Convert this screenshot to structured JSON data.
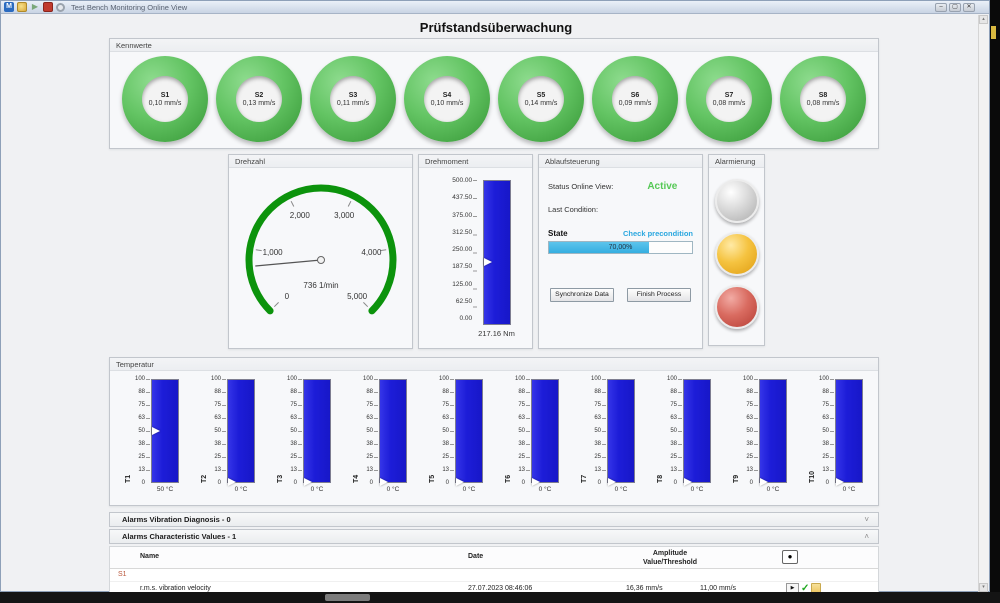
{
  "window": {
    "title": "Test Bench Monitoring Online View",
    "logo_letter": "M",
    "controls": {
      "minimize": "–",
      "maximize": "▢",
      "close": "✕"
    },
    "toolbar_icons": [
      "app-logo",
      "edit-tool",
      "run-arrow",
      "stop-square",
      "settings"
    ]
  },
  "page": {
    "title": "Prüfstandsüberwachung"
  },
  "kennwerte": {
    "label": "Kennwerte",
    "ring_color": "#5fbf5f",
    "sensors": [
      {
        "id": "S1",
        "value": "0,10 mm/s"
      },
      {
        "id": "S2",
        "value": "0,13 mm/s"
      },
      {
        "id": "S3",
        "value": "0,11 mm/s"
      },
      {
        "id": "S4",
        "value": "0,10 mm/s"
      },
      {
        "id": "S5",
        "value": "0,14 mm/s"
      },
      {
        "id": "S6",
        "value": "0,09 mm/s"
      },
      {
        "id": "S7",
        "value": "0,08 mm/s"
      },
      {
        "id": "S8",
        "value": "0,08 mm/s"
      }
    ]
  },
  "drehzahl": {
    "label": "Drehzahl",
    "value": 736,
    "unit": "1/min",
    "value_label": "736 1/min",
    "min": 0,
    "max": 5000,
    "ticks": [
      "0",
      "1,000",
      "2,000",
      "3,000",
      "4,000",
      "5,000"
    ],
    "arc_color": "#0c930c"
  },
  "drehmoment": {
    "label": "Drehmoment",
    "value": 217.16,
    "value_label": "217.16 Nm",
    "percent": 43.4,
    "bar_color": "#2020dd",
    "ticks": [
      "500.00",
      "437.50",
      "375.00",
      "312.50",
      "250.00",
      "187.50",
      "125.00",
      "62.50",
      "0.00"
    ]
  },
  "ablaufsteuerung": {
    "label": "Ablaufsteuerung",
    "status_label": "Status Online View:",
    "status_value": "Active",
    "status_color": "#55c855",
    "last_condition_label": "Last Condition:",
    "state_label": "State",
    "precondition_label": "Check precondition",
    "precondition_color": "#2aa7df",
    "progress_label": "70,00%",
    "progress_percent": 70,
    "sync_button": "Synchronize Data",
    "finish_button": "Finish Process"
  },
  "alarmierung": {
    "label": "Alarmierung",
    "lights": [
      {
        "name": "gray-light",
        "state": "off",
        "color": "#c9c9c9"
      },
      {
        "name": "yellow-light",
        "state": "on",
        "color": "#f2b32a"
      },
      {
        "name": "red-light",
        "state": "on",
        "color": "#c85a54"
      }
    ]
  },
  "temperatur": {
    "label": "Temperatur",
    "scale": [
      "100",
      "88",
      "75",
      "63",
      "50",
      "38",
      "25",
      "13",
      "0"
    ],
    "gauges": [
      {
        "id": "T1",
        "percent": 50,
        "value_label": "50 °C"
      },
      {
        "id": "T2",
        "percent": 0,
        "value_label": "0 °C"
      },
      {
        "id": "T3",
        "percent": 0,
        "value_label": "0 °C"
      },
      {
        "id": "T4",
        "percent": 0,
        "value_label": "0 °C"
      },
      {
        "id": "T5",
        "percent": 0,
        "value_label": "0 °C"
      },
      {
        "id": "T6",
        "percent": 0,
        "value_label": "0 °C"
      },
      {
        "id": "T7",
        "percent": 0,
        "value_label": "0 °C"
      },
      {
        "id": "T8",
        "percent": 0,
        "value_label": "0 °C"
      },
      {
        "id": "T9",
        "percent": 0,
        "value_label": "0 °C"
      },
      {
        "id": "T10",
        "percent": 0,
        "value_label": "0 °C"
      }
    ]
  },
  "alarm_sections": {
    "vibration": {
      "title": "Alarms Vibration Diagnosis - 0",
      "chevron": "˅"
    },
    "characteristic": {
      "title": "Alarms Characteristic Values - 1",
      "chevron": "˄"
    }
  },
  "alarm_table": {
    "headers": {
      "name": "Name",
      "date": "Date",
      "amplitude": "Amplitude",
      "value_threshold": "Value/Threshold"
    },
    "indicator": "●",
    "group": "S1",
    "rows": [
      {
        "name": "r.m.s. vibration velocity",
        "date": "27.07.2023 08:46:06",
        "value": "16,36  mm/s",
        "threshold": "11,00 mm/s",
        "play": "▶",
        "check": "✓"
      }
    ]
  },
  "scrollbar": {
    "up": "▴",
    "down": "▾"
  }
}
